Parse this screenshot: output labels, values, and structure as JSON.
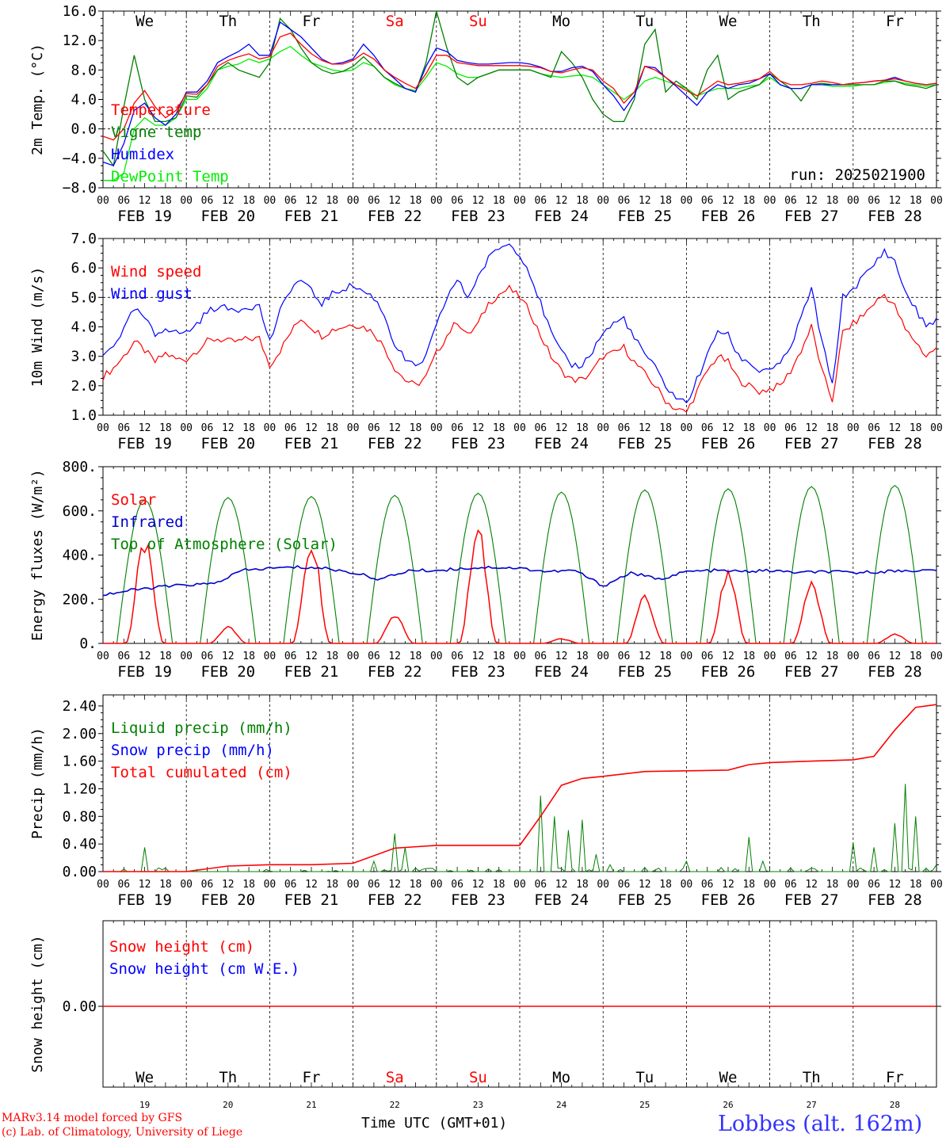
{
  "footer": {
    "model": "MARv3.14 model forced by GFS",
    "copyright": "(c) Lab. of Climatology, University of Liege",
    "xlabel": "Time UTC (GMT+01)",
    "location": "Lobbes (alt. 162m)"
  },
  "colors": {
    "red": "#ff0000",
    "green": "#008000",
    "blue": "#0000ff",
    "lightgreen": "#00ee00",
    "darkblue": "#0000cc"
  },
  "days": [
    "We",
    "Th",
    "Fr",
    "Sa",
    "Su",
    "Mo",
    "Tu",
    "We",
    "Th",
    "Fr"
  ],
  "weekend_days": [
    3,
    4
  ],
  "dates": [
    "FEB 19",
    "FEB 20",
    "FEB 21",
    "FEB 22",
    "FEB 23",
    "FEB 24",
    "FEB 25",
    "FEB 26",
    "FEB 27",
    "FEB 28"
  ],
  "day_numbers": [
    "19",
    "20",
    "21",
    "22",
    "23",
    "24",
    "25",
    "26",
    "27",
    "28"
  ],
  "hour_ticks": [
    "00",
    "06",
    "12",
    "18"
  ],
  "chart_data": [
    {
      "type": "line",
      "ylabel": "2m Temp. (°C)",
      "ylim": [
        -8,
        16
      ],
      "yticks": [
        "16.0",
        "12.0",
        "8.0",
        "4.0",
        "0.0",
        "−4.0",
        "−8.0"
      ],
      "ytick_values": [
        16,
        12,
        8,
        4,
        0,
        -4,
        -8
      ],
      "dashed_y": 0,
      "annotation": "run: 2025021900",
      "x_hours": [
        0,
        3,
        6,
        9,
        12,
        15,
        18,
        21,
        24,
        27,
        30,
        33,
        36,
        39,
        42,
        45,
        48,
        51,
        54,
        57,
        60,
        63,
        66,
        69,
        72,
        75,
        78,
        81,
        84,
        87,
        90,
        93,
        96,
        99,
        102,
        105,
        108,
        111,
        114,
        117,
        120,
        123,
        126,
        129,
        132,
        135,
        138,
        141,
        144,
        147,
        150,
        153,
        156,
        159,
        162,
        165,
        168,
        171,
        174,
        177,
        180,
        183,
        186,
        189,
        192,
        195,
        198,
        201,
        204,
        207,
        210,
        213,
        216,
        219,
        222,
        225,
        228,
        231,
        234,
        237,
        240
      ],
      "series": [
        {
          "name": "Temperature",
          "color": "red",
          "values": [
            -1.0,
            -1.5,
            0.0,
            3.5,
            5.2,
            3.0,
            1.5,
            2.5,
            4.8,
            4.7,
            6.0,
            8.5,
            9.3,
            9.8,
            10.2,
            9.5,
            9.8,
            12.5,
            13.0,
            11.5,
            10.2,
            9.3,
            8.8,
            8.8,
            9.3,
            10.3,
            9.5,
            8.0,
            7.0,
            6.2,
            5.5,
            7.5,
            10.0,
            10.0,
            9.0,
            8.8,
            8.6,
            8.6,
            8.6,
            8.6,
            8.6,
            8.5,
            8.3,
            7.8,
            7.6,
            8.0,
            8.3,
            8.0,
            6.5,
            5.5,
            3.5,
            5.0,
            8.5,
            8.0,
            7.0,
            6.0,
            5.2,
            4.5,
            5.5,
            6.5,
            6.0,
            6.2,
            6.5,
            6.8,
            7.8,
            6.5,
            6.0,
            6.0,
            6.2,
            6.5,
            6.3,
            6.0,
            6.2,
            6.3,
            6.5,
            6.6,
            6.8,
            6.5,
            6.2,
            6.0,
            6.2
          ]
        },
        {
          "name": "Vigne temp",
          "color": "green",
          "values": [
            -3.0,
            -5.0,
            3.0,
            10.0,
            4.0,
            1.0,
            1.0,
            1.5,
            4.5,
            4.3,
            6.0,
            8.0,
            9.0,
            8.0,
            7.5,
            7.0,
            9.0,
            15.0,
            13.5,
            11.0,
            9.0,
            8.0,
            7.5,
            7.8,
            8.5,
            9.8,
            8.5,
            7.0,
            6.2,
            5.5,
            5.0,
            9.0,
            16.0,
            11.0,
            7.0,
            6.0,
            7.0,
            7.5,
            8.0,
            8.0,
            8.0,
            8.0,
            7.5,
            7.0,
            10.5,
            9.0,
            7.0,
            4.0,
            2.0,
            1.0,
            1.0,
            4.0,
            11.5,
            13.5,
            5.0,
            6.5,
            5.5,
            4.0,
            8.0,
            10.0,
            4.0,
            5.0,
            5.5,
            6.0,
            7.5,
            6.5,
            5.5,
            3.8,
            6.0,
            6.2,
            6.0,
            6.0,
            6.0,
            6.0,
            6.0,
            6.5,
            6.5,
            6.0,
            5.8,
            5.5,
            6.0
          ]
        },
        {
          "name": "Humidex",
          "color": "blue",
          "values": [
            -4.5,
            -5.0,
            -2.0,
            2.5,
            3.5,
            1.5,
            0.5,
            2.0,
            5.0,
            5.0,
            6.5,
            9.0,
            9.8,
            10.5,
            11.5,
            10.0,
            10.0,
            14.5,
            13.5,
            12.5,
            11.0,
            9.5,
            8.8,
            9.0,
            9.5,
            11.5,
            10.0,
            8.0,
            6.8,
            5.5,
            5.0,
            8.5,
            11.0,
            10.5,
            9.3,
            9.0,
            8.8,
            8.8,
            8.9,
            9.0,
            9.0,
            8.8,
            8.4,
            7.8,
            7.8,
            8.3,
            8.5,
            7.8,
            6.0,
            4.5,
            2.5,
            4.5,
            8.5,
            8.3,
            7.0,
            5.8,
            4.5,
            3.2,
            5.0,
            6.0,
            5.5,
            6.0,
            6.2,
            6.8,
            7.5,
            6.0,
            5.5,
            5.5,
            6.0,
            6.0,
            6.0,
            6.0,
            6.2,
            6.3,
            6.5,
            6.6,
            7.0,
            6.5,
            6.2,
            6.0,
            6.2
          ]
        },
        {
          "name": "DewPoint Temp",
          "color": "lightgreen",
          "values": [
            -7.0,
            -7.0,
            -6.0,
            0.0,
            1.5,
            0.5,
            0.5,
            1.5,
            4.0,
            4.0,
            5.5,
            8.0,
            8.5,
            8.8,
            9.5,
            9.0,
            9.5,
            10.5,
            11.2,
            10.0,
            9.0,
            8.5,
            8.0,
            7.8,
            8.0,
            9.0,
            8.5,
            7.0,
            6.0,
            5.5,
            5.2,
            7.0,
            9.0,
            8.5,
            7.5,
            7.0,
            7.0,
            7.5,
            8.0,
            8.0,
            8.0,
            8.0,
            7.5,
            7.2,
            7.0,
            7.2,
            7.3,
            7.0,
            6.0,
            5.0,
            4.0,
            5.0,
            6.5,
            7.0,
            6.5,
            6.0,
            5.5,
            4.5,
            5.0,
            5.5,
            5.5,
            5.5,
            5.8,
            6.0,
            7.0,
            6.0,
            5.5,
            5.5,
            6.0,
            6.0,
            5.8,
            5.8,
            5.8,
            6.0,
            6.0,
            6.3,
            6.5,
            6.2,
            6.0,
            5.8,
            6.0
          ]
        }
      ]
    },
    {
      "type": "line",
      "ylabel": "10m Wind (m/s)",
      "ylim": [
        1,
        7
      ],
      "yticks": [
        "7.0",
        "6.0",
        "5.0",
        "4.0",
        "3.0",
        "2.0",
        "1.0"
      ],
      "ytick_values": [
        7,
        6,
        5,
        4,
        3,
        2,
        1
      ],
      "dashed_y": 5,
      "x_hours": [
        0,
        3,
        6,
        9,
        12,
        15,
        18,
        21,
        24,
        27,
        30,
        33,
        36,
        39,
        42,
        45,
        48,
        51,
        54,
        57,
        60,
        63,
        66,
        69,
        72,
        75,
        78,
        81,
        84,
        87,
        90,
        93,
        96,
        99,
        102,
        105,
        108,
        111,
        114,
        117,
        120,
        123,
        126,
        129,
        132,
        135,
        138,
        141,
        144,
        147,
        150,
        153,
        156,
        159,
        162,
        165,
        168,
        171,
        174,
        177,
        180,
        183,
        186,
        189,
        192,
        195,
        198,
        201,
        204,
        207,
        210,
        213,
        216,
        219,
        222,
        225,
        228,
        231,
        234,
        237,
        240
      ],
      "series": [
        {
          "name": "Wind speed",
          "color": "red",
          "values": [
            2.3,
            2.6,
            3.0,
            3.5,
            3.2,
            2.8,
            3.1,
            2.9,
            2.9,
            3.2,
            3.5,
            3.6,
            3.5,
            3.5,
            3.6,
            3.6,
            2.7,
            3.2,
            3.8,
            4.3,
            4.0,
            3.7,
            3.9,
            4.0,
            4.1,
            4.0,
            3.8,
            3.3,
            2.6,
            2.2,
            2.0,
            2.3,
            3.1,
            3.7,
            4.2,
            3.7,
            4.1,
            4.8,
            5.1,
            5.3,
            5.0,
            4.5,
            3.7,
            3.0,
            2.5,
            2.2,
            2.2,
            2.5,
            3.0,
            3.1,
            3.3,
            2.8,
            2.4,
            2.0,
            1.5,
            1.2,
            1.1,
            1.8,
            2.5,
            3.0,
            2.8,
            2.2,
            2.0,
            1.8,
            1.9,
            2.0,
            2.5,
            3.2,
            4.0,
            2.5,
            1.5,
            3.8,
            4.1,
            4.4,
            4.8,
            5.1,
            4.7,
            3.9,
            3.5,
            3.0,
            3.3
          ]
        },
        {
          "name": "Wind gust",
          "color": "blue",
          "values": [
            3.0,
            3.4,
            3.9,
            4.6,
            4.3,
            3.7,
            4.0,
            3.8,
            3.8,
            4.1,
            4.5,
            4.7,
            4.6,
            4.6,
            4.7,
            4.7,
            3.5,
            4.5,
            5.3,
            5.6,
            5.2,
            4.8,
            5.1,
            5.3,
            5.4,
            5.2,
            5.0,
            4.4,
            3.4,
            2.9,
            2.6,
            3.0,
            4.0,
            5.0,
            5.6,
            5.0,
            5.7,
            6.3,
            6.7,
            6.8,
            6.5,
            5.8,
            4.8,
            3.8,
            3.1,
            2.7,
            2.7,
            3.2,
            3.8,
            4.1,
            4.3,
            3.6,
            3.1,
            2.6,
            2.0,
            1.6,
            1.4,
            2.2,
            3.0,
            3.9,
            3.7,
            3.0,
            2.8,
            2.5,
            2.6,
            2.7,
            3.3,
            4.3,
            5.3,
            3.5,
            2.0,
            5.0,
            5.3,
            5.7,
            6.1,
            6.6,
            6.2,
            5.2,
            4.6,
            4.0,
            4.3
          ]
        }
      ]
    },
    {
      "type": "line",
      "ylabel": "Energy fluxes (W/m²)",
      "ylim": [
        0,
        800
      ],
      "yticks": [
        "800.",
        "600.",
        "400.",
        "200.",
        "0."
      ],
      "ytick_values": [
        800,
        600,
        400,
        200,
        0
      ],
      "peaks_solar": [
        440,
        70,
        450,
        130,
        490,
        20,
        200,
        300,
        260,
        40
      ],
      "peaks_toa": [
        650,
        660,
        665,
        670,
        680,
        685,
        695,
        700,
        710,
        715
      ],
      "infrared": [
        220,
        240,
        255,
        265,
        270,
        330,
        340,
        345,
        340,
        320,
        290,
        330,
        330,
        340,
        345,
        340,
        325,
        330,
        260,
        320,
        290,
        325,
        330,
        325,
        330,
        320,
        325,
        320,
        325,
        330,
        330
      ],
      "series": [
        {
          "name": "Solar",
          "color": "red"
        },
        {
          "name": "Infrared",
          "color": "darkblue"
        },
        {
          "name": "Top of Atmosphere (Solar)",
          "color": "green"
        }
      ]
    },
    {
      "type": "line",
      "ylabel": "Precip (mm/h)",
      "ylim": [
        0,
        2.56
      ],
      "yticks": [
        "2.40",
        "2.00",
        "1.60",
        "1.20",
        "0.80",
        "0.40",
        "0.00"
      ],
      "ytick_values": [
        2.4,
        2.0,
        1.6,
        1.2,
        0.8,
        0.4,
        0.0
      ],
      "x_hours": [
        0,
        12,
        24,
        36,
        48,
        60,
        72,
        84,
        96,
        108,
        120,
        126,
        132,
        138,
        144,
        156,
        168,
        180,
        186,
        192,
        204,
        216,
        222,
        228,
        234,
        240
      ],
      "series": [
        {
          "name": "Liquid precip (mm/h)",
          "color": "green"
        },
        {
          "name": "Snow precip (mm/h)",
          "color": "blue"
        },
        {
          "name": "Total cumulated (cm)",
          "color": "red",
          "values": [
            0.0,
            0.0,
            0.0,
            0.08,
            0.1,
            0.1,
            0.12,
            0.34,
            0.38,
            0.38,
            0.38,
            0.8,
            1.25,
            1.35,
            1.38,
            1.45,
            1.46,
            1.47,
            1.55,
            1.58,
            1.6,
            1.62,
            1.67,
            2.05,
            2.38,
            2.42
          ]
        }
      ]
    },
    {
      "type": "line",
      "ylabel": "Snow height (cm)",
      "yticks": [
        "0.00"
      ],
      "series": [
        {
          "name": "Snow height (cm)",
          "color": "red",
          "values": [
            0,
            0
          ]
        },
        {
          "name": "Snow height (cm W.E.)",
          "color": "blue"
        }
      ]
    }
  ]
}
